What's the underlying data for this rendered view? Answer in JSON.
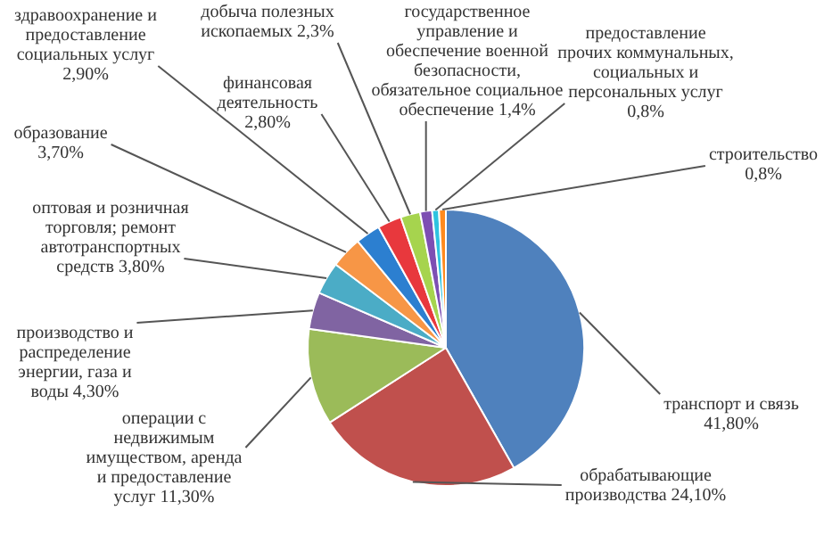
{
  "chart_data": {
    "type": "pie",
    "categories": [
      "транспорт и связь",
      "обрабатывающие производства",
      "операции с недвижимым имуществом, аренда и предоставление услуг",
      "производство и распределение энергии, газа и воды",
      "оптовая и розничная торговля; ремонт автотранспортных средств",
      "образование",
      "здравоохранение и предоставление социальных услуг",
      "финансовая деятельность",
      "добыча полезных ископаемых",
      "государственное управление и обеспечение военной безопасности, обязательное социальное обеспечение",
      "предоставление прочих коммунальных, социальных и персональных услуг",
      "строительство"
    ],
    "values": [
      41.8,
      24.1,
      11.3,
      4.3,
      3.8,
      3.7,
      2.9,
      2.8,
      2.3,
      1.4,
      0.8,
      0.8
    ],
    "colors": [
      "#4f81bd",
      "#c0504d",
      "#9bbb59",
      "#8064a2",
      "#4bacc6",
      "#f79646",
      "#2c7fd0",
      "#e8383d",
      "#a6d44e",
      "#7d4fb3",
      "#2ec3e0",
      "#ff8a1e"
    ],
    "value_labels": [
      "41,80%",
      "24,10%",
      "11,30%",
      "4,30%",
      "3,80%",
      "3,70%",
      "2,90%",
      "2,80%",
      "2,3%",
      "1,4%",
      "0,8%",
      "0,8%"
    ]
  }
}
